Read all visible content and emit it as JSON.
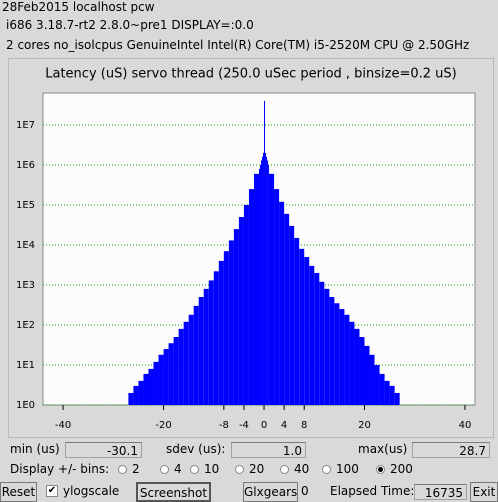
{
  "header": {
    "lines": [
      "28Feb2015 localhost pcw",
      "i686  3.18.7-rt2  2.8.0~pre1  DISPLAY=:0.0",
      "2 cores  no_isolcpus   GenuineIntel  Intel(R) Core(TM) i5-2520M CPU @ 2.50GHz"
    ]
  },
  "chart_data": {
    "type": "histogram",
    "title": "Latency (uS) servo thread (250.0 uSec period , binsize=0.2 uS)",
    "bins": [
      -40,
      -39,
      -38,
      -37,
      -36,
      -35,
      -34,
      -33,
      -32,
      -31,
      -30,
      -29,
      -28,
      -27,
      -26,
      -25,
      -24,
      -23,
      -22,
      -21,
      -20,
      -19,
      -18,
      -17,
      -16,
      -15,
      -14,
      -13,
      -12,
      -11,
      -10,
      -9,
      -8,
      -7,
      -6,
      -5,
      -4,
      -3,
      -2,
      -1,
      -0.8,
      -0.6,
      -0.4,
      -0.2,
      0,
      0.2,
      0.4,
      0.6,
      0.8,
      1,
      2,
      3,
      4,
      5,
      6,
      7,
      8,
      9,
      10,
      11,
      12,
      13,
      14,
      15,
      16,
      17,
      18,
      19,
      20,
      21,
      22,
      23,
      24,
      25,
      26,
      27,
      28,
      29,
      30,
      31,
      32,
      33,
      34,
      35,
      36,
      37,
      38,
      39,
      40
    ],
    "values": [
      0,
      0,
      0,
      0,
      0,
      0,
      0,
      0,
      0,
      1,
      0,
      1,
      1,
      2,
      3,
      4,
      6,
      8,
      12,
      18,
      25,
      35,
      50,
      80,
      120,
      180,
      300,
      500,
      800,
      1300,
      2200,
      4000,
      7000,
      13000,
      25000,
      50000,
      100000,
      250000,
      600000,
      800000,
      1000000,
      1300000,
      1600000,
      2000000,
      40000000,
      2000000,
      1600000,
      1300000,
      1000000,
      600000,
      250000,
      120000,
      60000,
      30000,
      15000,
      8000,
      5000,
      3000,
      2000,
      1200,
      800,
      500,
      350,
      250,
      180,
      120,
      80,
      50,
      30,
      18,
      10,
      6,
      4,
      3,
      2,
      1,
      1,
      0,
      0,
      0,
      0,
      0,
      0,
      0,
      0,
      0,
      0,
      0
    ],
    "color": "#0000ff",
    "xlim": [
      -44,
      42
    ],
    "xticks": [
      -40,
      -20,
      -8,
      -4,
      0,
      4,
      8,
      20,
      40
    ],
    "ylim": [
      1,
      63000000
    ],
    "log_scale": true,
    "grid": true,
    "grid_color": "#00a000",
    "yticks": [
      {
        "value": 1,
        "label": "1E0"
      },
      {
        "value": 10,
        "label": "1E1"
      },
      {
        "value": 100,
        "label": "1E2"
      },
      {
        "value": 1000,
        "label": "1E3"
      },
      {
        "value": 10000,
        "label": "1E4"
      },
      {
        "value": 100000,
        "label": "1E5"
      },
      {
        "value": 1000000,
        "label": "1E6"
      },
      {
        "value": 10000000,
        "label": "1E7"
      }
    ]
  },
  "stats": {
    "min_label": "min (us)",
    "min_value": "-30.1",
    "sdev_label": "sdev (us):",
    "sdev_value": "1.0",
    "max_label": "max(us)",
    "max_value": "28.7"
  },
  "bins_control": {
    "label": "Display +/- bins:",
    "options": [
      "2",
      "4",
      "10",
      "20",
      "40",
      "100",
      "200"
    ],
    "selected": 6
  },
  "toolbar": {
    "reset": "Reset",
    "ylogscale": "ylogscale",
    "screenshot": "Screenshot",
    "glxgears": "Glxgears",
    "glxgears_count": "0",
    "elapsed_label": "Elapsed Time:",
    "elapsed_value": "16735",
    "exit": "Exit"
  }
}
